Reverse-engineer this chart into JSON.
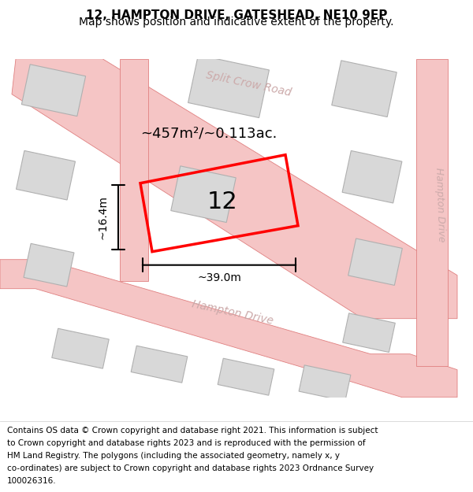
{
  "title": "12, HAMPTON DRIVE, GATESHEAD, NE10 9EP",
  "subtitle": "Map shows position and indicative extent of the property.",
  "footer_lines": [
    "Contains OS data © Crown copyright and database right 2021. This information is subject",
    "to Crown copyright and database rights 2023 and is reproduced with the permission of",
    "HM Land Registry. The polygons (including the associated geometry, namely x, y",
    "co-ordinates) are subject to Crown copyright and database rights 2023 Ordnance Survey",
    "100026316."
  ],
  "map_bg": "#f0eeec",
  "road_color": "#f5c5c5",
  "road_outline": "#e08080",
  "building_fill": "#d8d8d8",
  "building_edge": "#b0b0b0",
  "plot_color": "#ff0000",
  "plot_label": "12",
  "area_label": "~457m²/~0.113ac.",
  "width_label": "~39.0m",
  "height_label": "~16.4m",
  "split_crow_road": "Split Crow Road",
  "hampton_drive": "Hampton Drive",
  "title_fontsize": 11,
  "subtitle_fontsize": 10,
  "footer_fontsize": 7.5
}
